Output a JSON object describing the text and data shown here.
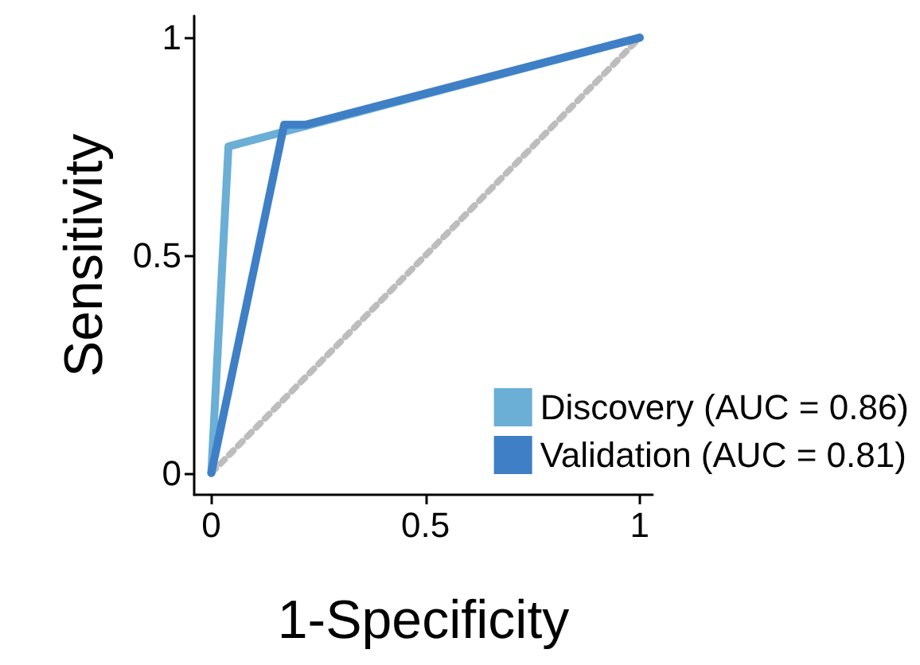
{
  "chart_data": {
    "type": "line",
    "xlabel": "1-Specificity",
    "ylabel": "Sensitivity",
    "xlim": [
      -0.04,
      1.03
    ],
    "ylim": [
      -0.05,
      1.05
    ],
    "xticks": [
      0,
      0.5,
      1
    ],
    "yticks": [
      0,
      0.5,
      1
    ],
    "grid": false,
    "legend": "bottom right",
    "marker": "none",
    "line_style": "solid",
    "series": [
      {
        "name": "Discovery (AUC = 0.86)",
        "color": "#6baed6",
        "x": [
          0,
          0.04,
          1
        ],
        "values": [
          0,
          0.75,
          1
        ]
      },
      {
        "name": "Validation (AUC = 0.81)",
        "color": "#3f7fc6",
        "x": [
          0,
          0.17,
          0.22,
          1
        ],
        "values": [
          0,
          0.8,
          0.8,
          1
        ]
      },
      {
        "color": "#bdbdbd",
        "line_style": "dotted",
        "x": [
          0,
          1
        ],
        "values": [
          0,
          1
        ]
      }
    ]
  }
}
